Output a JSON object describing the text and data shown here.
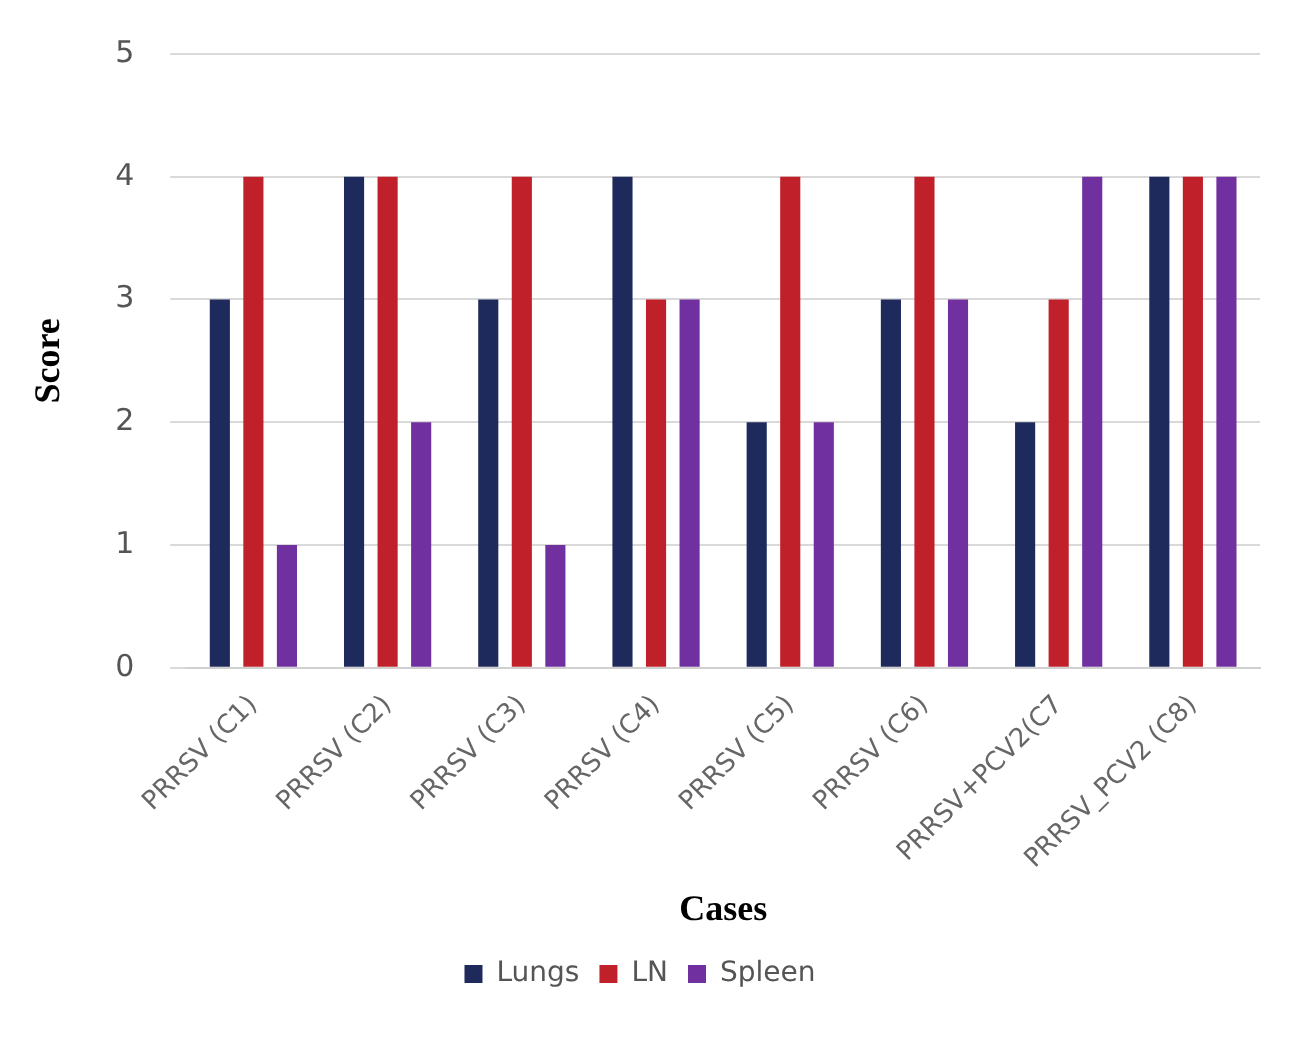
{
  "chart_data": {
    "type": "bar",
    "xlabel": "Cases",
    "ylabel": "Score",
    "categories": [
      "PRRSV (C1)",
      "PRRSV (C2)",
      "PRRSV (C3)",
      "PRRSV (C4)",
      "PRRSV (C5)",
      "PRRSV (C6)",
      "PRRSV+PCV2(C7",
      "PRRSV_PCV2 (C8)"
    ],
    "series": [
      {
        "name": "Lungs",
        "color": "#1f2a5c",
        "values": [
          3,
          4,
          3,
          4,
          2,
          3,
          2,
          4
        ]
      },
      {
        "name": "LN",
        "color": "#c0202a",
        "values": [
          4,
          4,
          4,
          3,
          4,
          4,
          3,
          4
        ]
      },
      {
        "name": "Spleen",
        "color": "#7030a0",
        "values": [
          1,
          2,
          1,
          3,
          2,
          3,
          4,
          4
        ]
      }
    ],
    "ylim": [
      0,
      5
    ],
    "yticks": [
      0,
      1,
      2,
      3,
      4,
      5
    ],
    "grid": "y",
    "legend": "bottom"
  }
}
